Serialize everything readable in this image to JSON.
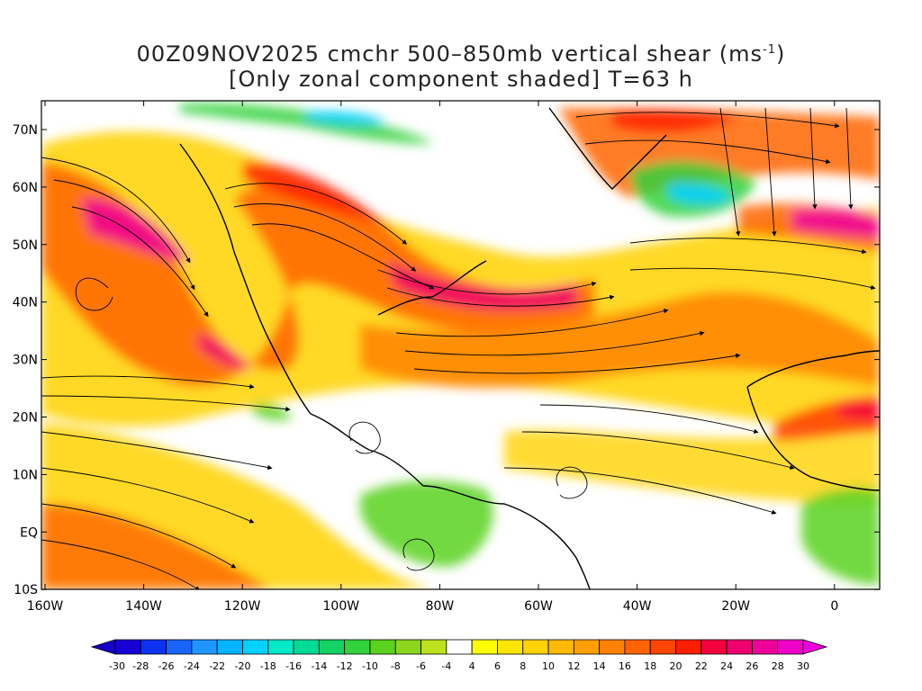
{
  "title": {
    "line1_prefix": "00Z09NOV2025 cmchr 500–850mb vertical shear (ms",
    "line1_sup": "-1",
    "line1_suffix": ")",
    "line2": "[Only zonal component shaded] T=63 h"
  },
  "axes": {
    "lat_labels": [
      "70N",
      "60N",
      "50N",
      "40N",
      "30N",
      "20N",
      "10N",
      "EQ",
      "10S"
    ],
    "lon_labels": [
      "160W",
      "140W",
      "120W",
      "100W",
      "80W",
      "60W",
      "40W",
      "20W",
      "0"
    ]
  },
  "colorbar": {
    "labels": [
      "-30",
      "-28",
      "-26",
      "-24",
      "-22",
      "-20",
      "-18",
      "-16",
      "-14",
      "-12",
      "-10",
      "-8",
      "-6",
      "-4",
      "4",
      "6",
      "8",
      "10",
      "12",
      "14",
      "16",
      "18",
      "20",
      "22",
      "24",
      "26",
      "28",
      "30"
    ],
    "colors": [
      "#1500d6",
      "#0f32f0",
      "#1964ff",
      "#1e96ff",
      "#00b4ff",
      "#00d2ff",
      "#00eac8",
      "#00dc96",
      "#14d264",
      "#32d23c",
      "#5ad21e",
      "#8cd71e",
      "#bee11e",
      "#ffffff",
      "#ffff00",
      "#ffe600",
      "#ffd200",
      "#ffb900",
      "#ffa000",
      "#ff8200",
      "#ff6400",
      "#ff4600",
      "#ff1e00",
      "#f5003c",
      "#f0006e",
      "#f0009b",
      "#f000c8"
    ],
    "under_color": "#1400c8",
    "over_color": "#f000dc"
  },
  "map_legend_colors": {
    "land_outline": "#000000",
    "streamline": "#000000"
  }
}
